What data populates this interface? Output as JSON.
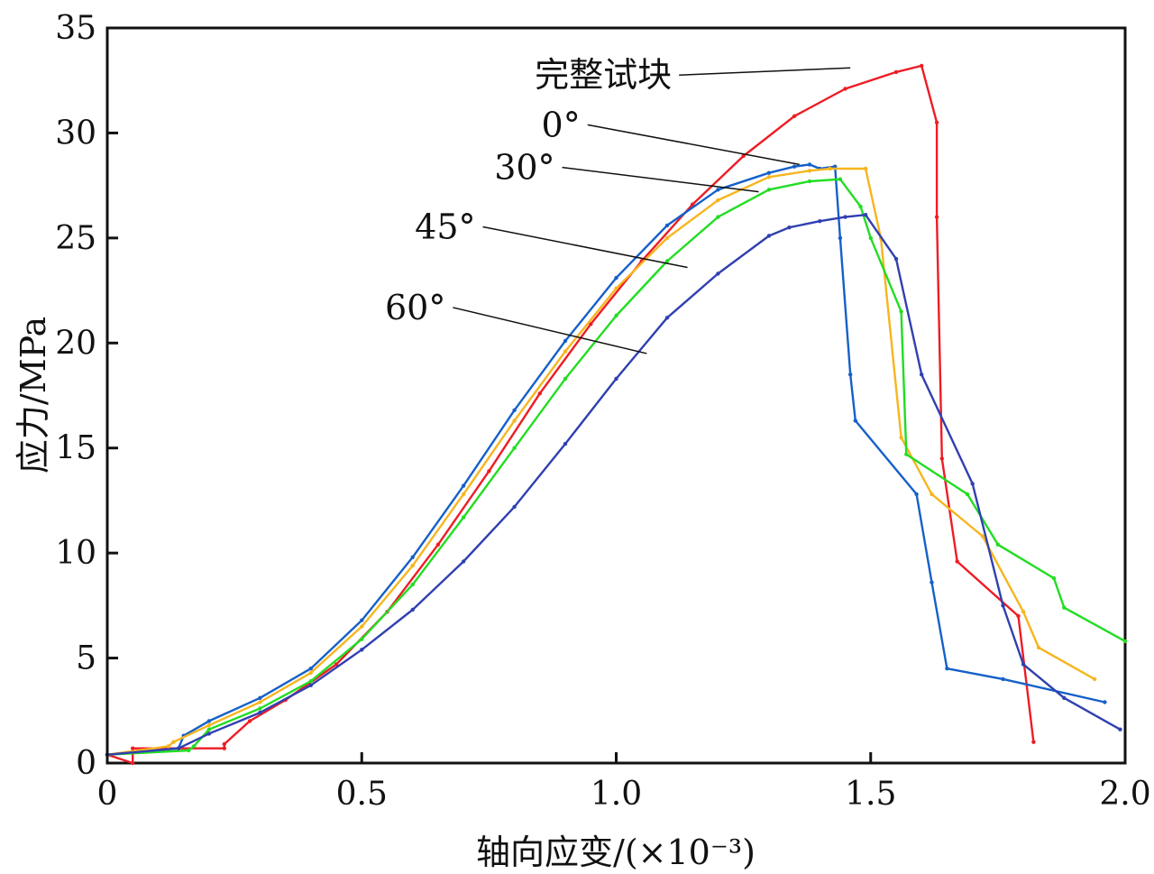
{
  "chart_data": {
    "type": "line",
    "title": "",
    "xlabel": "轴向应变/(×10⁻³)",
    "ylabel": "应力/MPa",
    "xlim": [
      0,
      2.0
    ],
    "ylim": [
      0,
      35
    ],
    "xticks": [
      "0",
      "0.5",
      "1.0",
      "1.5",
      "2.0"
    ],
    "yticks": [
      "0",
      "5",
      "10",
      "15",
      "20",
      "25",
      "30",
      "35"
    ],
    "grid": false,
    "series": [
      {
        "name": "完整试块",
        "color": "#ee1c25",
        "x": [
          0.0,
          0.05,
          0.05,
          0.23,
          0.23,
          0.28,
          0.35,
          0.45,
          0.55,
          0.65,
          0.75,
          0.85,
          0.95,
          1.05,
          1.15,
          1.25,
          1.35,
          1.45,
          1.55,
          1.6,
          1.63,
          1.63,
          1.64,
          1.67,
          1.79,
          1.82
        ],
        "y": [
          0.4,
          0.0,
          0.7,
          0.7,
          0.9,
          2.0,
          3.0,
          4.7,
          7.2,
          10.4,
          13.9,
          17.6,
          20.9,
          23.9,
          26.6,
          28.9,
          30.8,
          32.1,
          32.9,
          33.2,
          30.5,
          26.0,
          14.5,
          9.6,
          7.0,
          1.0
        ]
      },
      {
        "name": "0°",
        "color": "#1560c8",
        "x": [
          0.0,
          0.14,
          0.15,
          0.2,
          0.3,
          0.4,
          0.5,
          0.6,
          0.7,
          0.8,
          0.9,
          1.0,
          1.1,
          1.2,
          1.3,
          1.35,
          1.38,
          1.4,
          1.43,
          1.44,
          1.46,
          1.47,
          1.59,
          1.62,
          1.65,
          1.76,
          1.96
        ],
        "y": [
          0.4,
          0.7,
          1.3,
          2.0,
          3.1,
          4.5,
          6.8,
          9.8,
          13.2,
          16.8,
          20.1,
          23.1,
          25.6,
          27.3,
          28.1,
          28.4,
          28.5,
          28.3,
          28.4,
          25.0,
          18.5,
          16.3,
          12.8,
          8.6,
          4.5,
          4.0,
          2.9
        ]
      },
      {
        "name": "30°",
        "color": "#f7b51e",
        "x": [
          0.0,
          0.12,
          0.13,
          0.2,
          0.3,
          0.4,
          0.5,
          0.6,
          0.7,
          0.8,
          0.9,
          1.0,
          1.1,
          1.2,
          1.3,
          1.38,
          1.42,
          1.49,
          1.52,
          1.56,
          1.62,
          1.72,
          1.8,
          1.83,
          1.94
        ],
        "y": [
          0.4,
          0.8,
          1.0,
          1.8,
          2.9,
          4.3,
          6.5,
          9.4,
          12.8,
          16.3,
          19.6,
          22.6,
          25.0,
          26.8,
          27.9,
          28.2,
          28.3,
          28.3,
          25.0,
          15.5,
          12.8,
          10.8,
          7.2,
          5.5,
          4.0
        ]
      },
      {
        "name": "45°",
        "color": "#22dd22",
        "x": [
          0.0,
          0.16,
          0.17,
          0.2,
          0.3,
          0.4,
          0.5,
          0.6,
          0.7,
          0.8,
          0.9,
          1.0,
          1.1,
          1.2,
          1.3,
          1.38,
          1.44,
          1.48,
          1.5,
          1.56,
          1.57,
          1.69,
          1.75,
          1.86,
          1.88,
          2.0
        ],
        "y": [
          0.4,
          0.6,
          0.8,
          1.6,
          2.6,
          3.9,
          5.9,
          8.5,
          11.7,
          15.0,
          18.3,
          21.3,
          23.9,
          26.0,
          27.3,
          27.7,
          27.8,
          26.5,
          25.0,
          21.5,
          14.7,
          12.8,
          10.4,
          8.8,
          7.4,
          5.8
        ]
      },
      {
        "name": "60°",
        "color": "#3040b0",
        "x": [
          0.0,
          0.14,
          0.2,
          0.3,
          0.4,
          0.5,
          0.6,
          0.7,
          0.8,
          0.9,
          1.0,
          1.1,
          1.2,
          1.3,
          1.34,
          1.4,
          1.45,
          1.49,
          1.55,
          1.6,
          1.7,
          1.76,
          1.8,
          1.88,
          1.99
        ],
        "y": [
          0.4,
          0.7,
          1.4,
          2.4,
          3.7,
          5.4,
          7.3,
          9.6,
          12.2,
          15.2,
          18.3,
          21.2,
          23.3,
          25.1,
          25.5,
          25.8,
          26.0,
          26.1,
          24.0,
          18.5,
          13.3,
          7.5,
          4.7,
          3.1,
          1.6
        ]
      }
    ],
    "annotations": [
      {
        "text": "完整试块",
        "series": "完整试块",
        "point": [
          1.46,
          33.1
        ]
      },
      {
        "text": "0°",
        "series": "0°",
        "point": [
          1.36,
          28.5
        ]
      },
      {
        "text": "30°",
        "series": "30°",
        "point": [
          1.28,
          27.2
        ]
      },
      {
        "text": "45°",
        "series": "45°",
        "point": [
          1.14,
          23.6
        ]
      },
      {
        "text": "60°",
        "series": "60°",
        "point": [
          1.06,
          19.5
        ]
      }
    ]
  }
}
